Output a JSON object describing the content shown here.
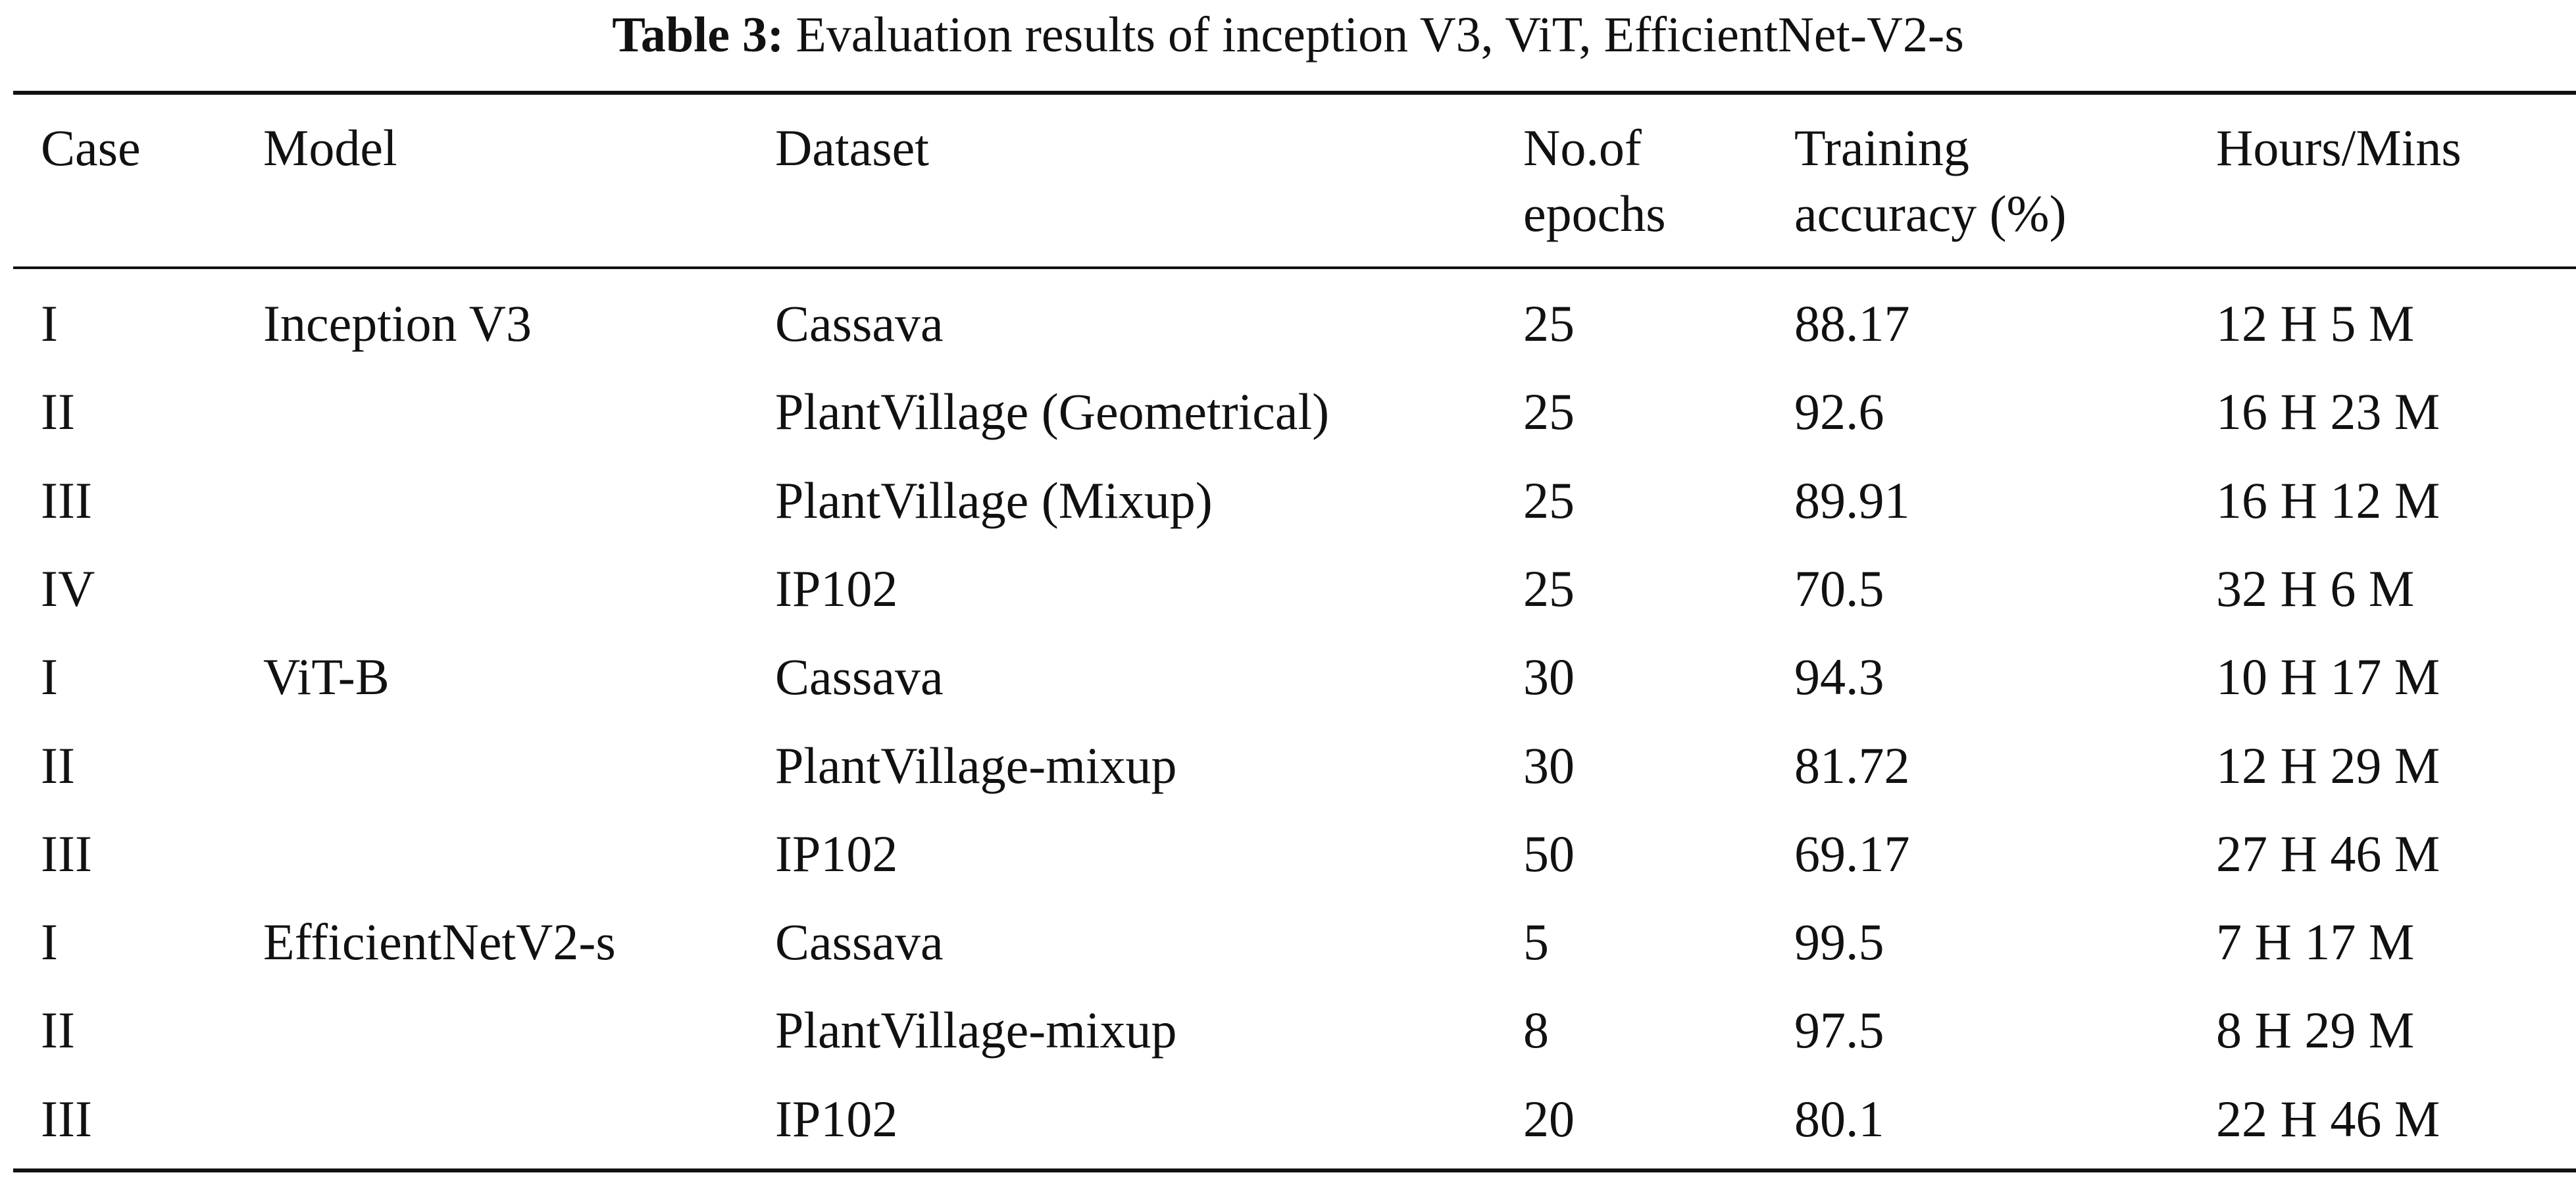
{
  "caption": {
    "label": "Table 3:",
    "text": "Evaluation results of inception V3, ViT, EfficientNet-V2-s"
  },
  "columns": [
    [
      "Case"
    ],
    [
      "Model"
    ],
    [
      "Dataset"
    ],
    [
      "No.of",
      "epochs"
    ],
    [
      "Training",
      "accuracy (%)"
    ],
    [
      "Hours/Mins"
    ]
  ],
  "rows": [
    [
      "I",
      "Inception V3",
      "Cassava",
      "25",
      "88.17",
      "12 H 5 M"
    ],
    [
      "II",
      "",
      "PlantVillage (Geometrical)",
      "25",
      "92.6",
      "16 H 23 M"
    ],
    [
      "III",
      "",
      "PlantVillage (Mixup)",
      "25",
      "89.91",
      "16 H 12 M"
    ],
    [
      "IV",
      "",
      "IP102",
      "25",
      "70.5",
      "32 H 6 M"
    ],
    [
      "I",
      "ViT-B",
      "Cassava",
      "30",
      "94.3",
      "10 H 17 M"
    ],
    [
      "II",
      "",
      "PlantVillage-mixup",
      "30",
      "81.72",
      "12 H 29 M"
    ],
    [
      "III",
      "",
      "IP102",
      "50",
      "69.17",
      "27 H 46 M"
    ],
    [
      "I",
      "EfficientNetV2-s",
      "Cassava",
      "5",
      "99.5",
      "7 H 17 M"
    ],
    [
      "II",
      "",
      "PlantVillage-mixup",
      "8",
      "97.5",
      "8 H 29 M"
    ],
    [
      "III",
      "",
      "IP102",
      "20",
      "80.1",
      "22 H 46 M"
    ]
  ]
}
